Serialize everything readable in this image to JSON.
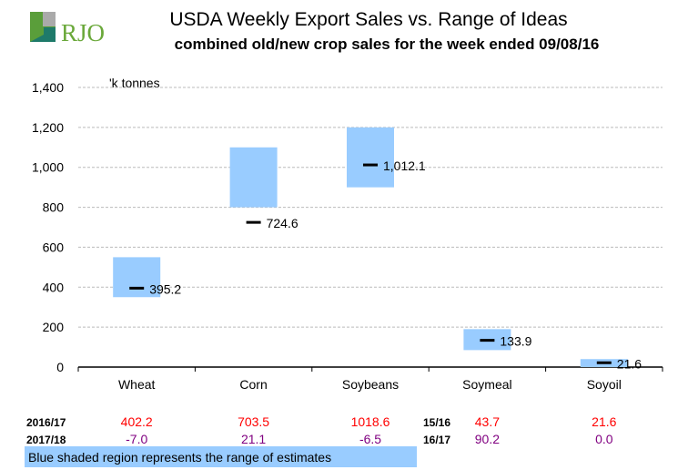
{
  "logo": {
    "text": "RJO"
  },
  "chart_data": {
    "type": "range-bar",
    "title": "USDA Weekly Export Sales vs. Range of Ideas",
    "subtitle": "combined old/new crop sales for the week ended 09/08/16",
    "ylabel": "'k tonnes",
    "ylim": [
      0,
      1400
    ],
    "yticks": [
      0,
      200,
      400,
      600,
      800,
      1000,
      1200,
      1400
    ],
    "ytick_labels": [
      "0",
      "200",
      "400",
      "600",
      "800",
      "1,000",
      "1,200",
      "1,400"
    ],
    "grid": true,
    "categories": [
      "Wheat",
      "Corn",
      "Soybeans",
      "Soymeal",
      "Soyoil"
    ],
    "range_low": [
      350,
      800,
      900,
      85,
      0
    ],
    "range_high": [
      550,
      1100,
      1200,
      190,
      40
    ],
    "actual": [
      395.2,
      724.6,
      1012.1,
      133.9,
      21.6
    ],
    "actual_labels": [
      "395.2",
      "724.6",
      "1,012.1",
      "133.9",
      "21.6"
    ],
    "colors": {
      "range": "#99ccff",
      "actual": "#000000",
      "old_crop": "#ff0000",
      "new_crop": "#800080"
    }
  },
  "table": {
    "row1": {
      "label": "2016/17",
      "label_alt": "15/16",
      "values": [
        "402.2",
        "703.5",
        "1018.6",
        "43.7",
        "21.6"
      ]
    },
    "row2": {
      "label": "2017/18",
      "label_alt": "16/17",
      "values": [
        "-7.0",
        "21.1",
        "-6.5",
        "90.2",
        "0.0"
      ]
    }
  },
  "footnote": "Blue shaded region represents the range of estimates"
}
